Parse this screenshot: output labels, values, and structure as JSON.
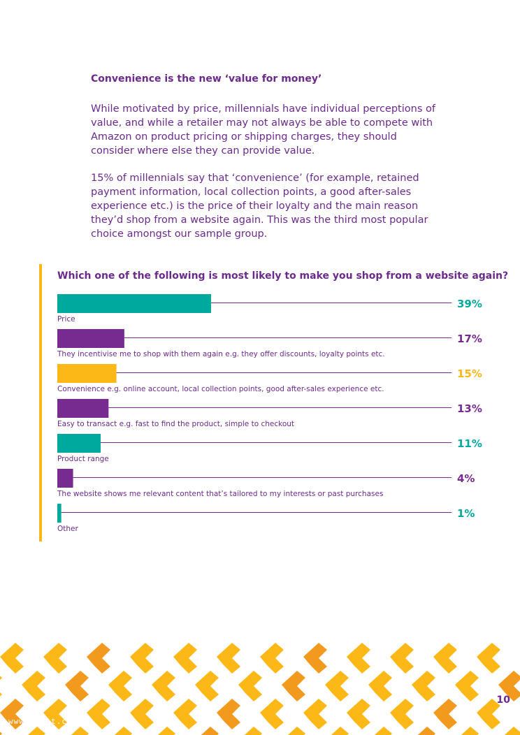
{
  "section": {
    "heading": "Convenience is the new ‘value for money’",
    "paragraphs": [
      "While motivated by price, millennials have individual perceptions of value, and while a retailer may not always be able to compete with Amazon on product pricing or shipping charges, they should consider where else they can provide value.",
      "15% of millennials say that ‘convenience’ (for example, retained payment information, local collection points, a good after-sales experience etc.) is the price of their loyalty and the main reason they’d shop from a website again. This was the third most popular choice amongst our sample group."
    ]
  },
  "chart_data": {
    "type": "bar",
    "orientation": "horizontal",
    "title": "Which one of the following is most likely to make you shop from a website again?",
    "unit": "%",
    "categories": [
      "Price",
      "They incentivise me to shop with them again e.g. they offer discounts, loyalty points etc.",
      "Convenience e.g. online account, local collection points, good after-sales experience etc.",
      "Easy to transact e.g. fast to find the product, simple to checkout",
      "Product range",
      "The website shows me relevant content that’s tailored to my interests or past purchases",
      "Other"
    ],
    "values": [
      39,
      17,
      15,
      13,
      11,
      4,
      1
    ],
    "labels": [
      "39%",
      "17%",
      "15%",
      "13%",
      "11%",
      "4%",
      "1%"
    ],
    "bar_colors": [
      "#00a99d",
      "#772b90",
      "#fbb817",
      "#772b90",
      "#00a99d",
      "#772b90",
      "#00a99d"
    ],
    "label_colors": [
      "#00a99d",
      "#772b90",
      "#fbb817",
      "#772b90",
      "#00a99d",
      "#772b90",
      "#00a99d"
    ],
    "line_color": "#772b90",
    "xlim": [
      0,
      100
    ]
  },
  "footer": {
    "page_number": "10",
    "watermark": "www.useit.com.cn",
    "pattern_colors": [
      "#fbb817",
      "#f29a1e"
    ]
  }
}
